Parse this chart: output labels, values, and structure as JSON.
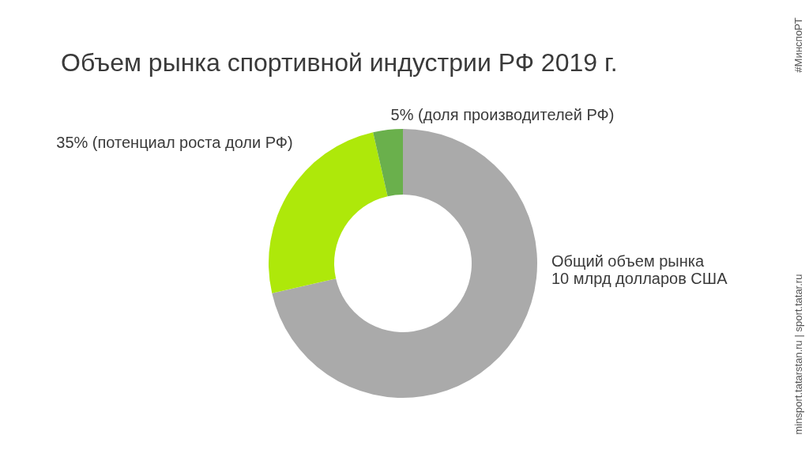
{
  "chart_data": {
    "type": "donut",
    "title": "Объем рынка спортивной индустрии РФ 2019 г.",
    "categories": [
      "Общий объем рынка\n10 млрд долларов США",
      "35% (потенциал роста доли РФ)",
      "5% (доля производителей РФ)"
    ],
    "values": [
      100,
      35,
      5
    ],
    "colors": [
      "#aaaaaa",
      "#aee80a",
      "#6ab04c"
    ],
    "annotations": [
      "#МинспоРТ",
      "minsport.tatarstan.ru   |   sport.tatar.ru"
    ]
  }
}
